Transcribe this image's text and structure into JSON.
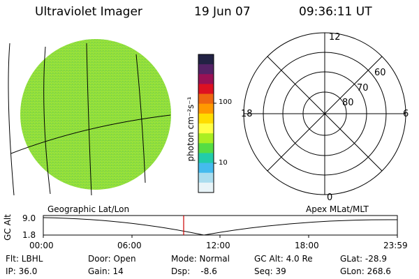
{
  "header": {
    "instrument": "Ultraviolet Imager",
    "date": "19 Jun 07",
    "time": "09:36:11 UT"
  },
  "colorbar": {
    "unit_label": "photon cm⁻²s⁻¹",
    "ticks": [
      "100",
      "10"
    ]
  },
  "polar_plot": {
    "mlt_labels": [
      "12",
      "18",
      "6",
      "0"
    ],
    "mlat_labels": [
      "60",
      "70",
      "80"
    ]
  },
  "timeline": {
    "left_title": "Geographic Lat/Lon",
    "right_title": "Apex MLat/MLT",
    "y_axis_label": "GC Alt",
    "y_ticks": [
      "9.0",
      "1.8"
    ],
    "x_ticks": [
      "00:00",
      "06:00",
      "12:00",
      "18:00",
      "23:59"
    ],
    "marker_time": "09:36:11",
    "marker_color": "#cc0000"
  },
  "status": {
    "row1": {
      "flt": "Flt: LBHL",
      "door": "Door: Open",
      "mode": "Mode: Normal",
      "gc_alt": "GC Alt: 4.0 Re",
      "glat": "GLat: -28.9"
    },
    "row2": {
      "ip": "IP: 36.0",
      "gain": "Gain: 14",
      "dsp": "Dsp:    -8.6",
      "seq": "Seq: 39",
      "glon": "GLon: 268.6"
    }
  },
  "colors": {
    "image_fill": "#8fdc3a",
    "colorbar": [
      "#222244",
      "#552266",
      "#991155",
      "#dd1122",
      "#ee6611",
      "#ff9900",
      "#ffdd00",
      "#ffff44",
      "#aaee22",
      "#55dd44",
      "#22ccaa",
      "#44bbee",
      "#aaddee",
      "#e8f4f8"
    ]
  }
}
